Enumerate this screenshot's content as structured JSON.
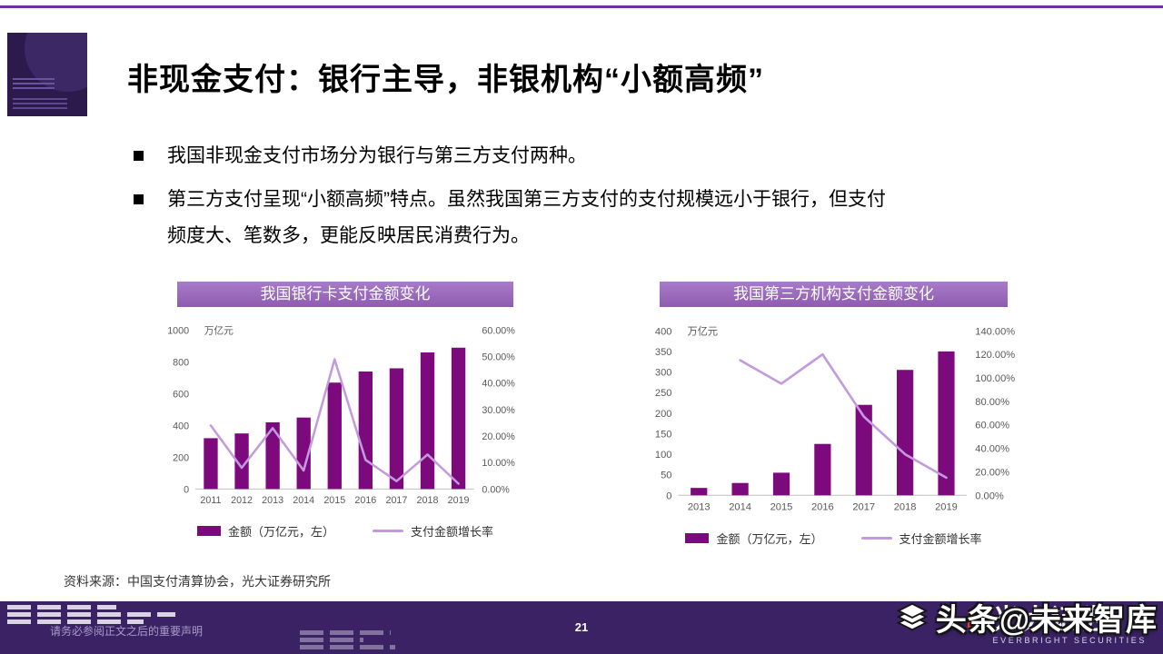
{
  "page": {
    "title": "非现金支付：银行主导，非银机构“小额高频”",
    "bullets": [
      "我国非现金支付市场分为银行与第三方支付两种。",
      "第三方支付呈现“小额高频”特点。虽然我国第三方支付的支付规模远小于银行，但支付\n频度大、笔数多，更能反映居民消费行为。"
    ],
    "source": "资料来源：中国支付清算协会，光大证券研究所"
  },
  "footer": {
    "disclaimer": "请务必参阅正文之后的重要声明",
    "page_number": "21",
    "brand": "光大证券",
    "brand_en": "EVERBRIGHT SECURITIES",
    "watermark": "头条@未来智库"
  },
  "colors": {
    "accent_purple": "#7030a0",
    "chart_title_bg": "#9b6fc0",
    "bar_color": "#7d0a7d",
    "line_color": "#c49ade",
    "footer_bg": "#3a2265"
  },
  "chart_data": [
    {
      "type": "bar",
      "title": "我国银行卡支付金额变化",
      "unit_label": "万亿元",
      "categories": [
        "2011",
        "2012",
        "2013",
        "2014",
        "2015",
        "2016",
        "2017",
        "2018",
        "2019"
      ],
      "series": [
        {
          "name": "金额（万亿元，左）",
          "type": "bar",
          "axis": "left",
          "values": [
            320,
            350,
            420,
            450,
            670,
            740,
            760,
            860,
            890
          ]
        },
        {
          "name": "支付金额增长率",
          "type": "line",
          "axis": "right",
          "values": [
            24,
            8,
            23,
            7,
            49,
            11,
            3,
            13,
            2
          ]
        }
      ],
      "left_axis": {
        "min": 0,
        "max": 1000,
        "step": 200,
        "unit": "万亿元"
      },
      "right_axis": {
        "min": 0,
        "max": 60,
        "step": 10,
        "unit": "%"
      },
      "legend_position": "bottom",
      "grid": false
    },
    {
      "type": "bar",
      "title": "我国第三方机构支付金额变化",
      "unit_label": "万亿元",
      "categories": [
        "2013",
        "2014",
        "2015",
        "2016",
        "2017",
        "2018",
        "2019"
      ],
      "series": [
        {
          "name": "金额（万亿元，左）",
          "type": "bar",
          "axis": "left",
          "values": [
            18,
            30,
            55,
            125,
            220,
            305,
            350
          ]
        },
        {
          "name": "支付金额增长率",
          "type": "line",
          "axis": "right",
          "values": [
            null,
            115,
            95,
            120,
            67,
            35,
            15
          ]
        }
      ],
      "left_axis": {
        "min": 0,
        "max": 400,
        "step": 50,
        "unit": "万亿元"
      },
      "right_axis": {
        "min": 0,
        "max": 140,
        "step": 20,
        "unit": "%"
      },
      "legend_position": "bottom",
      "grid": false
    }
  ]
}
